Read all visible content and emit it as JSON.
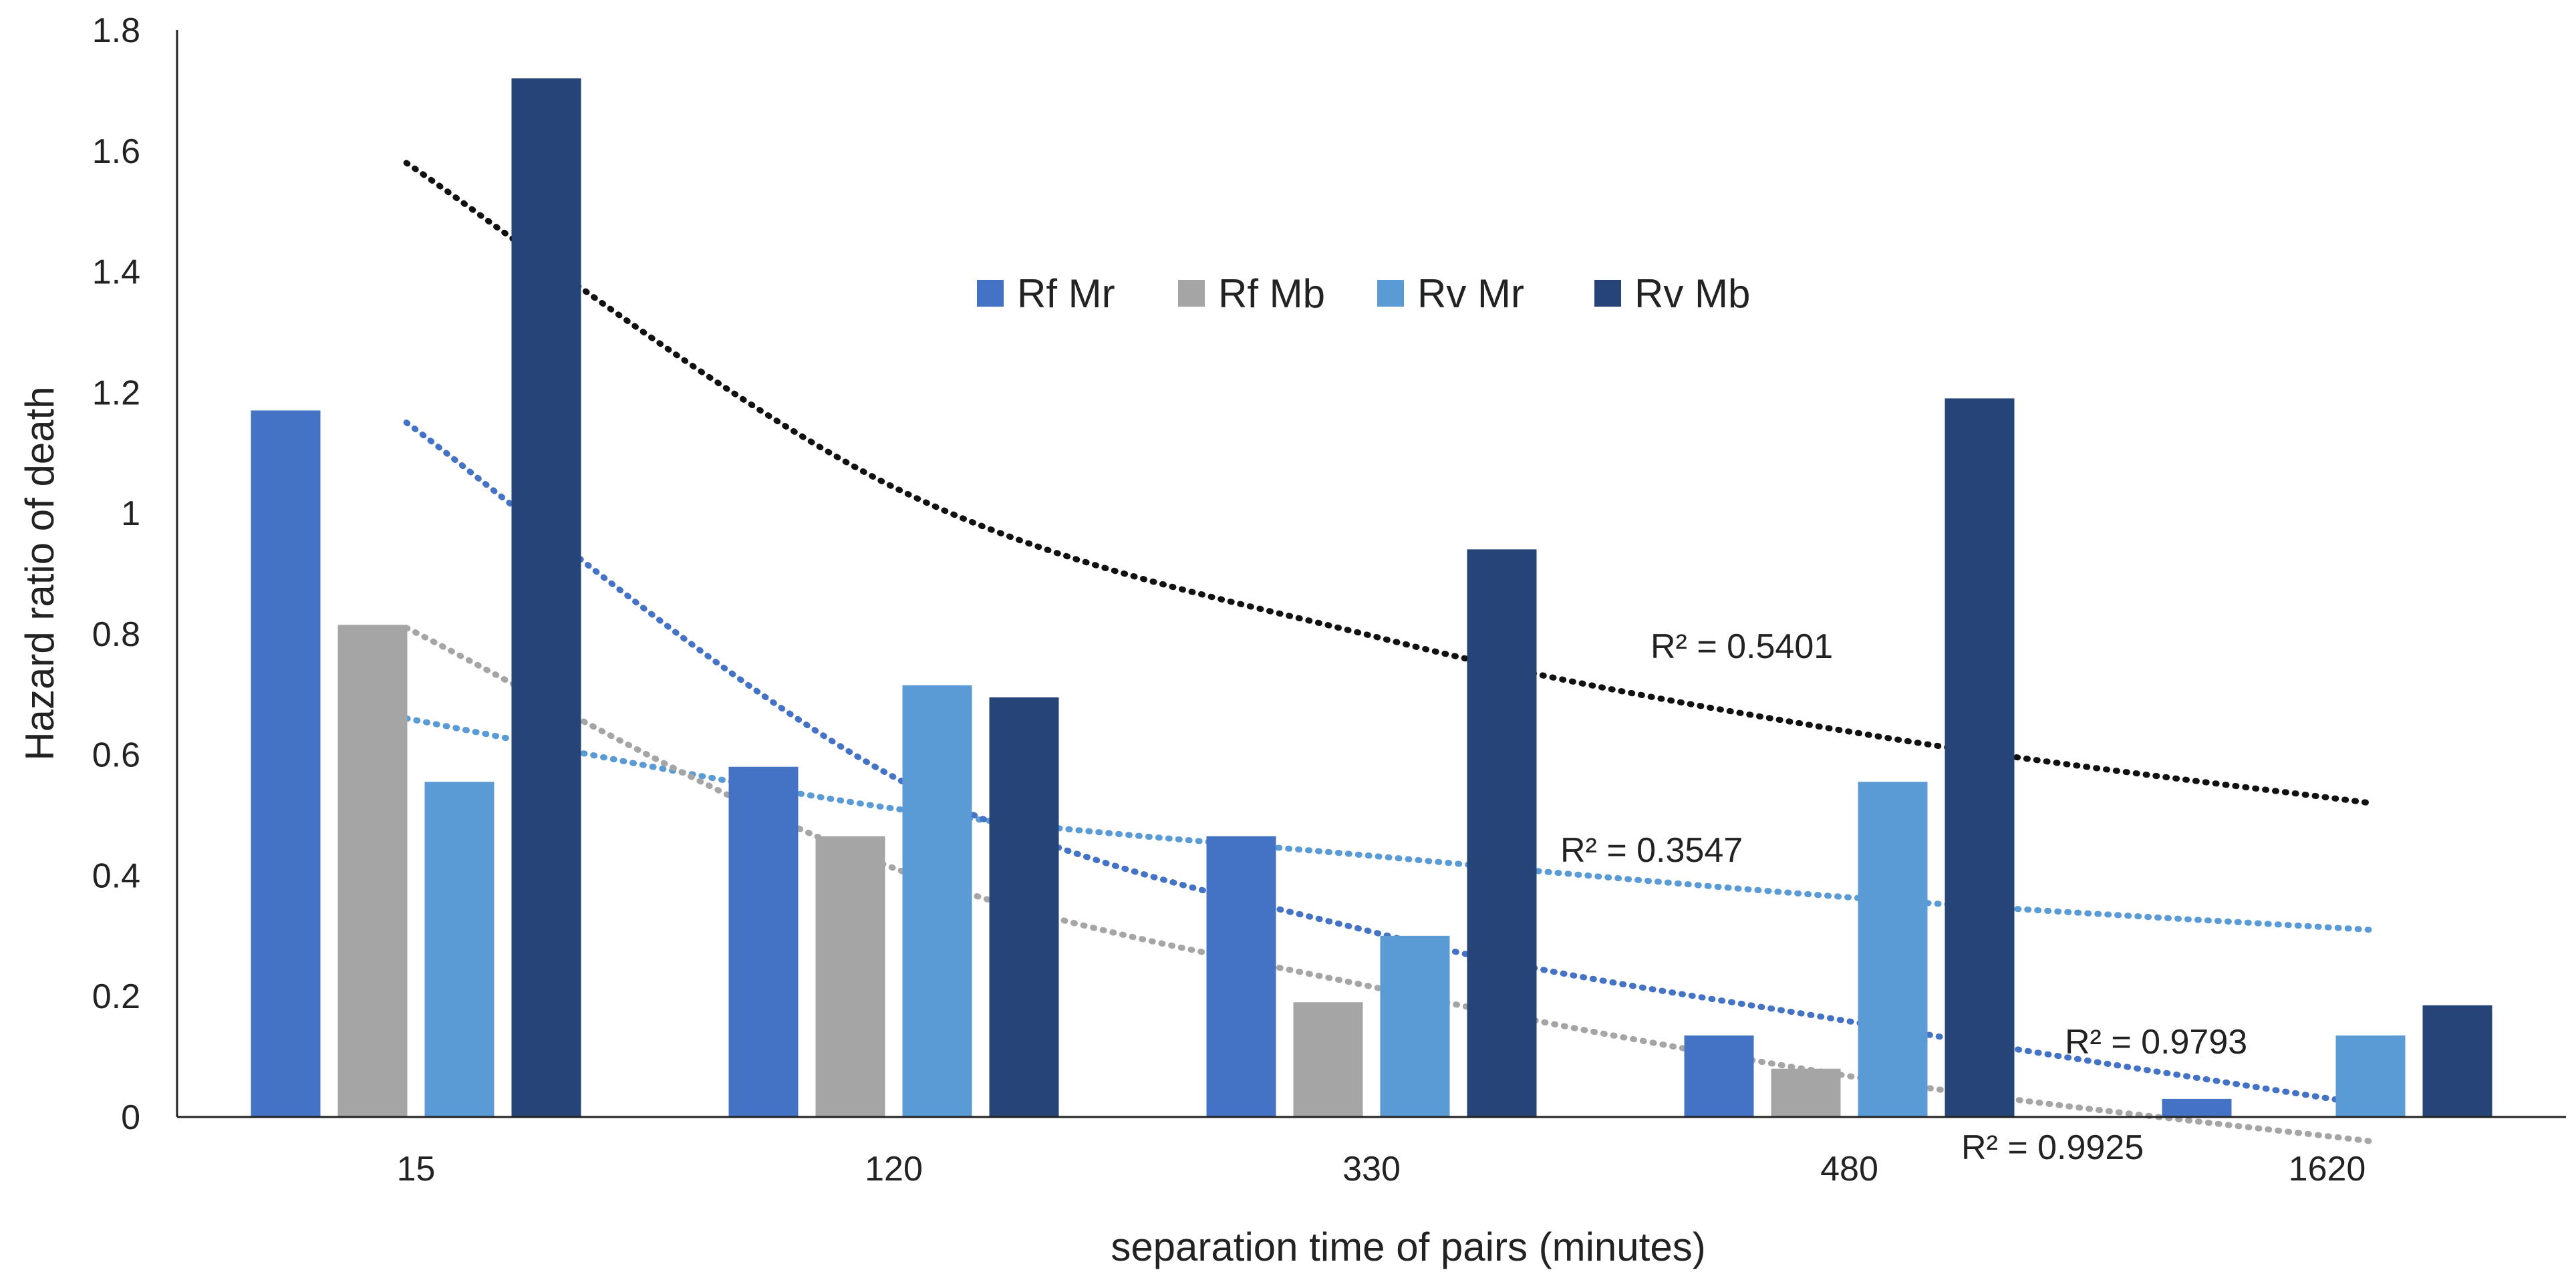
{
  "chart_data": {
    "type": "bar",
    "title": "",
    "xlabel": "separation time of pairs  (minutes)",
    "ylabel": "Hazard ratio of death",
    "ylim": [
      0,
      1.8
    ],
    "yticks": [
      "0",
      "0.2",
      "0.4",
      "0.6",
      "0.8",
      "1",
      "1.2",
      "1.4",
      "1.6",
      "1.8"
    ],
    "categories": [
      "15",
      "120",
      "330",
      "480",
      "1620"
    ],
    "series": [
      {
        "name": "Rf Mr",
        "color": "#4472C4",
        "values": [
          1.17,
          0.58,
          0.465,
          0.135,
          0.03
        ]
      },
      {
        "name": "Rf Mb",
        "color": "#A5A5A5",
        "values": [
          0.815,
          0.465,
          0.19,
          0.08,
          0
        ]
      },
      {
        "name": "Rv Mr",
        "color": "#5B9BD5",
        "values": [
          0.555,
          0.715,
          0.3,
          0.555,
          0.135
        ]
      },
      {
        "name": "Rv Mb",
        "color": "#264478",
        "values": [
          1.72,
          0.695,
          0.94,
          1.19,
          0.185
        ]
      }
    ],
    "legend_position": "top-center",
    "trendlines": [
      {
        "series": "Rv Mb",
        "color": "#111111",
        "r2_label": "R² = 0.5401",
        "values": [
          1.58,
          1.04,
          0.79,
          0.63,
          0.52
        ]
      },
      {
        "series": "Rv Mr",
        "color": "#5B9BD5",
        "r2_label": "R² = 0.3547",
        "values": [
          0.66,
          0.51,
          0.43,
          0.36,
          0.31
        ]
      },
      {
        "series": "Rf Mr",
        "color": "#4472C4",
        "r2_label": "R² = 0.9793",
        "values": [
          1.15,
          0.56,
          0.3,
          0.15,
          0.02
        ]
      },
      {
        "series": "Rf Mb",
        "color": "#A5A5A5",
        "r2_label": "R² = 0.9925",
        "values": [
          0.81,
          0.41,
          0.21,
          0.06,
          -0.04
        ]
      }
    ]
  }
}
